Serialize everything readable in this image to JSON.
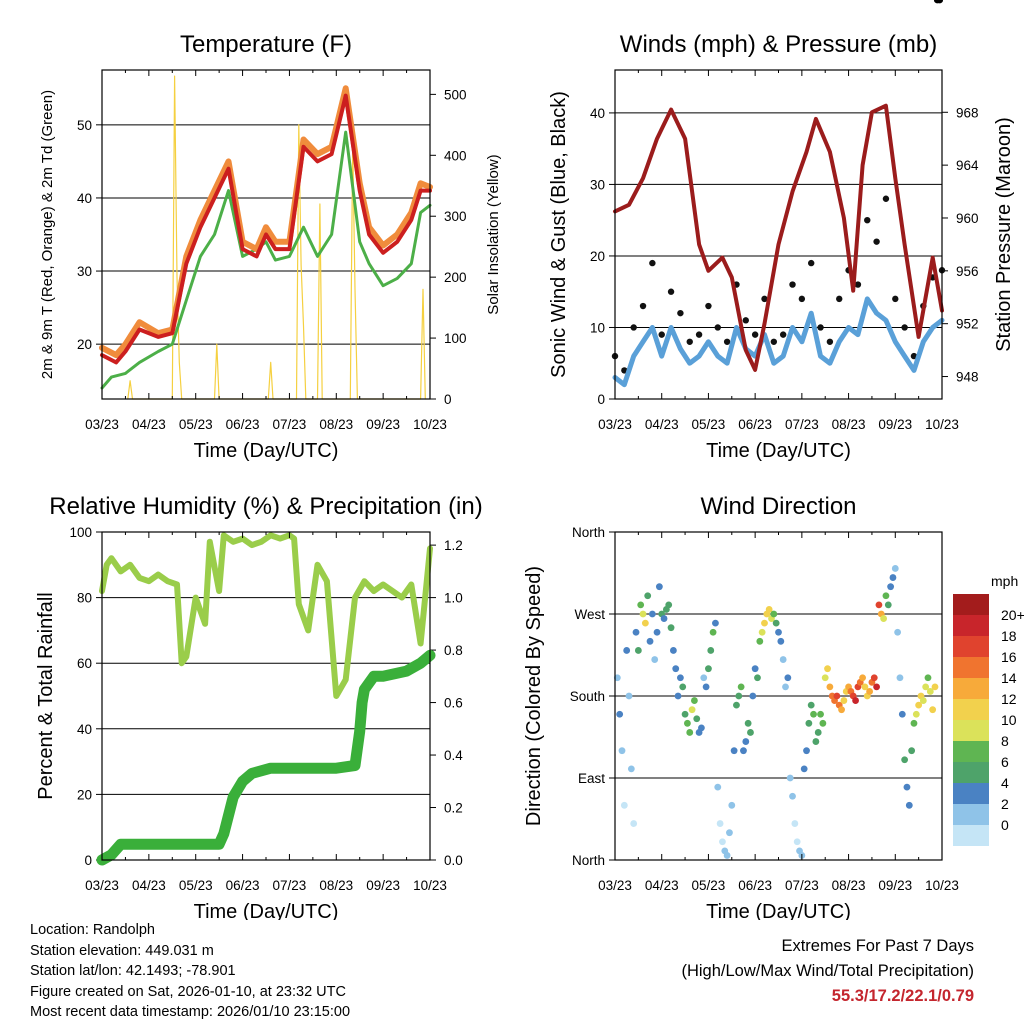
{
  "chart_data": [
    {
      "id": "temperature",
      "type": "line",
      "title": "Temperature (F)",
      "xlabel": "Time (Day/UTC)",
      "ylabel_left": "2m & 9m T (Red, Orange) & 2m Td (Green)",
      "ylabel_right": "Solar Insolation (Yellow)",
      "x_ticks": [
        "03/23",
        "04/23",
        "05/23",
        "06/23",
        "07/23",
        "08/23",
        "09/23",
        "10/23"
      ],
      "y_left_ticks": [
        20,
        30,
        40,
        50
      ],
      "y_left_lim": [
        12.5,
        57.5
      ],
      "y_right_ticks": [
        0,
        100,
        200,
        300,
        400,
        500
      ],
      "y_right_lim": [
        0,
        540
      ],
      "series": [
        {
          "name": "9m T",
          "color": "#f08c3c",
          "x": [
            0,
            0.3,
            0.5,
            0.8,
            1.2,
            1.5,
            1.8,
            2.1,
            2.4,
            2.7,
            3.0,
            3.3,
            3.5,
            3.7,
            4.0,
            4.3,
            4.6,
            4.9,
            5.2,
            5.5,
            5.7,
            6.0,
            6.3,
            6.6,
            6.8,
            7.0
          ],
          "values": [
            19.5,
            18.5,
            20,
            23,
            21.5,
            22,
            32,
            37,
            41,
            45,
            34,
            33,
            36,
            34,
            34,
            48,
            46,
            47,
            55,
            42,
            36,
            33.5,
            35,
            38,
            42,
            41.5
          ]
        },
        {
          "name": "2m T",
          "color": "#cc1f1f",
          "x": [
            0,
            0.3,
            0.5,
            0.8,
            1.2,
            1.5,
            1.8,
            2.1,
            2.4,
            2.7,
            3.0,
            3.3,
            3.5,
            3.7,
            4.0,
            4.3,
            4.6,
            4.9,
            5.2,
            5.5,
            5.7,
            6.0,
            6.3,
            6.6,
            6.8,
            7.0
          ],
          "values": [
            18.5,
            17.5,
            19,
            22,
            21,
            21.5,
            31,
            36,
            40,
            44,
            33,
            32,
            35,
            33,
            33,
            47,
            45,
            46,
            54,
            41,
            35,
            32.5,
            34,
            37,
            41,
            41
          ]
        },
        {
          "name": "2m Td",
          "color": "#4caf48",
          "x": [
            0,
            0.2,
            0.5,
            0.8,
            1.2,
            1.5,
            1.8,
            2.1,
            2.4,
            2.7,
            3.0,
            3.3,
            3.5,
            3.7,
            4.0,
            4.3,
            4.6,
            4.9,
            5.2,
            5.5,
            5.7,
            6.0,
            6.3,
            6.6,
            6.8,
            7.0
          ],
          "values": [
            14,
            15.5,
            16,
            17.5,
            19,
            20,
            26,
            32,
            35,
            41,
            32,
            33,
            34,
            31.5,
            32,
            36,
            32,
            35,
            49,
            34,
            31,
            28,
            29,
            31,
            38,
            39
          ]
        },
        {
          "name": "Solar Insolation",
          "color": "#f5d040",
          "x": [
            0.55,
            0.6,
            0.65,
            1.5,
            1.55,
            1.6,
            1.65,
            1.7,
            2.4,
            2.45,
            2.5,
            3.55,
            3.6,
            3.65,
            4.15,
            4.2,
            4.25,
            4.3,
            4.35,
            4.6,
            4.65,
            4.7,
            5.3,
            5.35,
            5.4,
            5.45,
            6.8,
            6.85,
            6.9
          ],
          "values": [
            0,
            30,
            0,
            0,
            530,
            200,
            60,
            0,
            0,
            90,
            0,
            0,
            60,
            0,
            0,
            450,
            220,
            120,
            0,
            0,
            320,
            0,
            0,
            420,
            180,
            0,
            0,
            180,
            0
          ]
        }
      ]
    },
    {
      "id": "winds",
      "type": "line",
      "title": "Winds (mph) & Pressure (mb)",
      "xlabel": "Time (Day/UTC)",
      "ylabel_left": "Sonic Wind & Gust (Blue, Black)",
      "ylabel_right": "Station Pressure (Maroon)",
      "x_ticks": [
        "03/23",
        "04/23",
        "05/23",
        "06/23",
        "07/23",
        "08/23",
        "09/23",
        "10/23"
      ],
      "y_left_ticks": [
        0,
        10,
        20,
        30,
        40
      ],
      "y_left_lim": [
        0,
        46
      ],
      "y_right_ticks": [
        948,
        952,
        956,
        960,
        964,
        968
      ],
      "y_right_lim": [
        946.3,
        971.2
      ],
      "series": [
        {
          "name": "Sonic Wind",
          "color": "#5aa0d8",
          "x": [
            0,
            0.2,
            0.4,
            0.6,
            0.8,
            1.0,
            1.2,
            1.4,
            1.6,
            1.8,
            2.0,
            2.2,
            2.4,
            2.6,
            2.8,
            3.0,
            3.2,
            3.4,
            3.6,
            3.8,
            4.0,
            4.2,
            4.4,
            4.6,
            4.8,
            5.0,
            5.2,
            5.4,
            5.6,
            5.8,
            6.0,
            6.2,
            6.4,
            6.6,
            6.8,
            7.0
          ],
          "values": [
            3,
            2,
            6,
            8,
            10,
            6,
            10,
            7,
            5,
            6,
            8,
            6,
            5,
            10,
            7,
            6,
            9,
            5,
            6,
            10,
            8,
            12,
            6,
            5,
            8,
            10,
            9,
            14,
            12,
            11,
            8,
            6,
            4,
            8,
            10,
            11
          ]
        },
        {
          "name": "Gust",
          "color": "#111111",
          "x": [
            0,
            0.2,
            0.4,
            0.6,
            0.8,
            1.0,
            1.2,
            1.4,
            1.6,
            1.8,
            2.0,
            2.2,
            2.4,
            2.6,
            2.8,
            3.0,
            3.2,
            3.4,
            3.6,
            3.8,
            4.0,
            4.2,
            4.4,
            4.6,
            4.8,
            5.0,
            5.2,
            5.4,
            5.6,
            5.8,
            6.0,
            6.2,
            6.4,
            6.6,
            6.8,
            7.0
          ],
          "values": [
            6,
            4,
            10,
            13,
            19,
            9,
            15,
            12,
            8,
            9,
            13,
            10,
            8,
            16,
            11,
            9,
            14,
            8,
            9,
            16,
            14,
            19,
            10,
            8,
            14,
            18,
            16,
            25,
            22,
            28,
            14,
            10,
            6,
            13,
            17,
            18
          ]
        },
        {
          "name": "Station Pressure",
          "color": "#9b1c1c",
          "x": [
            0,
            0.3,
            0.6,
            0.9,
            1.2,
            1.5,
            1.8,
            2.0,
            2.3,
            2.5,
            2.8,
            3.0,
            3.2,
            3.5,
            3.8,
            4.1,
            4.3,
            4.6,
            4.9,
            5.1,
            5.3,
            5.5,
            5.8,
            6.0,
            6.2,
            6.5,
            6.8,
            7.0
          ],
          "values": [
            960.5,
            961,
            963,
            966,
            968.2,
            966,
            958,
            956,
            957,
            955.5,
            950,
            948.5,
            952,
            958,
            962,
            965,
            967.5,
            965,
            960,
            954.5,
            964,
            968,
            968.5,
            963,
            958,
            951,
            957,
            953
          ]
        }
      ]
    },
    {
      "id": "rh_precip",
      "type": "line",
      "title": "Relative Humidity (%) & Precipitation (in)",
      "xlabel": "Time (Day/UTC)",
      "ylabel_left": "Percent & Total Rainfall",
      "x_ticks": [
        "03/23",
        "04/23",
        "05/23",
        "06/23",
        "07/23",
        "08/23",
        "09/23",
        "10/23"
      ],
      "y_left_ticks": [
        0,
        20,
        40,
        60,
        80,
        100
      ],
      "y_left_lim": [
        0,
        100
      ],
      "y_right_ticks": [
        "0.0",
        "0.2",
        "0.4",
        "0.6",
        "0.8",
        "1.0",
        "1.2"
      ],
      "y_right_lim": [
        0,
        1.25
      ],
      "series": [
        {
          "name": "Relative Humidity",
          "color": "#9acd4a",
          "x": [
            0,
            0.1,
            0.2,
            0.4,
            0.6,
            0.8,
            1.0,
            1.2,
            1.4,
            1.6,
            1.7,
            1.8,
            2.0,
            2.2,
            2.3,
            2.5,
            2.6,
            2.8,
            3.0,
            3.2,
            3.4,
            3.6,
            3.8,
            4.0,
            4.1,
            4.2,
            4.4,
            4.6,
            4.8,
            5.0,
            5.2,
            5.4,
            5.6,
            5.8,
            6.0,
            6.2,
            6.4,
            6.6,
            6.8,
            7.0
          ],
          "values": [
            82,
            90,
            92,
            88,
            90,
            86,
            85,
            87,
            85,
            84,
            60,
            62,
            80,
            72,
            97,
            82,
            99,
            97,
            98,
            96,
            97,
            99,
            98,
            99,
            98,
            78,
            70,
            90,
            85,
            50,
            55,
            80,
            85,
            82,
            84,
            82,
            80,
            84,
            66,
            95
          ]
        },
        {
          "name": "Total Precipitation",
          "color": "#3aaf3a",
          "x": [
            0,
            0.2,
            0.4,
            0.6,
            1.0,
            1.5,
            2.0,
            2.5,
            2.6,
            2.8,
            3.0,
            3.2,
            3.6,
            4.0,
            4.5,
            5.0,
            5.4,
            5.5,
            5.55,
            5.6,
            5.8,
            6.0,
            6.5,
            6.8,
            7.0
          ],
          "values": [
            0,
            0.02,
            0.06,
            0.06,
            0.06,
            0.06,
            0.06,
            0.06,
            0.1,
            0.24,
            0.3,
            0.33,
            0.35,
            0.35,
            0.35,
            0.35,
            0.36,
            0.49,
            0.6,
            0.65,
            0.7,
            0.7,
            0.72,
            0.75,
            0.78
          ]
        }
      ]
    },
    {
      "id": "wind_direction",
      "type": "scatter",
      "title": "Wind Direction",
      "xlabel": "Time (Day/UTC)",
      "ylabel_left": "Direction (Colored By Speed)",
      "x_ticks": [
        "03/23",
        "04/23",
        "05/23",
        "06/23",
        "07/23",
        "08/23",
        "09/23",
        "10/23"
      ],
      "y_ticks": [
        "North",
        "East",
        "South",
        "West",
        "North"
      ],
      "y_lim": [
        0,
        360
      ],
      "legend_title": "mph",
      "legend_labels": [
        "20+",
        "18",
        "16",
        "14",
        "12",
        "10",
        "8",
        "6",
        "4",
        "2",
        "0"
      ],
      "legend_colors": [
        "#a31c1c",
        "#c8252b",
        "#e0432e",
        "#f0742f",
        "#f7aa3a",
        "#f2d14d",
        "#dbe25a",
        "#5fb552",
        "#4ea36a",
        "#4a82c3",
        "#8fc3e8",
        "#c5e5f6"
      ],
      "points_x": [
        0.05,
        0.1,
        0.15,
        0.2,
        0.25,
        0.3,
        0.35,
        0.4,
        0.45,
        0.5,
        0.55,
        0.6,
        0.65,
        0.7,
        0.75,
        0.8,
        0.85,
        0.9,
        0.95,
        1.0,
        1.05,
        1.1,
        1.15,
        1.2,
        1.25,
        1.3,
        1.35,
        1.4,
        1.45,
        1.5,
        1.55,
        1.6,
        1.65,
        1.7,
        1.75,
        1.8,
        1.85,
        1.9,
        1.95,
        2.0,
        2.05,
        2.1,
        2.15,
        2.2,
        2.25,
        2.3,
        2.35,
        2.4,
        2.45,
        2.5,
        2.55,
        2.6,
        2.65,
        2.7,
        2.75,
        2.8,
        2.85,
        2.9,
        2.95,
        3.0,
        3.05,
        3.1,
        3.15,
        3.2,
        3.25,
        3.3,
        3.35,
        3.4,
        3.45,
        3.5,
        3.55,
        3.6,
        3.65,
        3.7,
        3.75,
        3.8,
        3.85,
        3.9,
        3.95,
        4.0,
        4.05,
        4.1,
        4.15,
        4.2,
        4.25,
        4.3,
        4.35,
        4.4,
        4.45,
        4.5,
        4.55,
        4.6,
        4.65,
        4.7,
        4.75,
        4.8,
        4.85,
        4.9,
        4.95,
        5.0,
        5.05,
        5.1,
        5.15,
        5.2,
        5.25,
        5.3,
        5.35,
        5.4,
        5.45,
        5.5,
        5.55,
        5.6,
        5.65,
        5.7,
        5.75,
        5.8,
        5.85,
        5.9,
        5.95,
        6.0,
        6.05,
        6.1,
        6.15,
        6.2,
        6.25,
        6.3,
        6.35,
        6.4,
        6.45,
        6.5,
        6.55,
        6.6,
        6.65,
        6.7,
        6.75,
        6.8,
        6.85,
        6.9,
        6.95
      ],
      "points_y": [
        200,
        160,
        120,
        60,
        230,
        180,
        100,
        40,
        250,
        230,
        280,
        270,
        260,
        290,
        240,
        270,
        220,
        250,
        300,
        270,
        265,
        275,
        280,
        255,
        230,
        210,
        180,
        200,
        190,
        160,
        150,
        140,
        165,
        175,
        155,
        140,
        145,
        200,
        190,
        210,
        230,
        250,
        260,
        80,
        40,
        20,
        10,
        5,
        30,
        60,
        120,
        170,
        180,
        190,
        120,
        130,
        150,
        140,
        180,
        210,
        200,
        240,
        250,
        260,
        270,
        275,
        265,
        270,
        260,
        250,
        240,
        220,
        190,
        200,
        90,
        70,
        40,
        20,
        10,
        5,
        100,
        120,
        150,
        170,
        160,
        130,
        140,
        160,
        150,
        200,
        210,
        190,
        180,
        175,
        180,
        170,
        165,
        175,
        185,
        190,
        185,
        180,
        175,
        190,
        195,
        200,
        190,
        180,
        185,
        195,
        200,
        190,
        280,
        270,
        265,
        290,
        280,
        300,
        310,
        320,
        250,
        200,
        160,
        110,
        80,
        60,
        120,
        150,
        160,
        170,
        180,
        175,
        190,
        200,
        185,
        165,
        190
      ],
      "points_speed": [
        3,
        4,
        2,
        1,
        4,
        3,
        2,
        1,
        5,
        6,
        9,
        10,
        12,
        6,
        4,
        5,
        3,
        4,
        5,
        6,
        5,
        6,
        7,
        6,
        5,
        4,
        4,
        5,
        6,
        7,
        8,
        9,
        10,
        8,
        6,
        5,
        4,
        3,
        5,
        6,
        7,
        8,
        4,
        2,
        1,
        1,
        2,
        2,
        3,
        3,
        4,
        6,
        7,
        8,
        5,
        5,
        6,
        7,
        4,
        5,
        6,
        8,
        10,
        12,
        13,
        12,
        10,
        8,
        6,
        5,
        4,
        3,
        3,
        4,
        2,
        2,
        1,
        1,
        2,
        2,
        4,
        5,
        6,
        7,
        8,
        6,
        7,
        8,
        9,
        10,
        12,
        14,
        16,
        17,
        18,
        16,
        14,
        12,
        13,
        15,
        17,
        19,
        20,
        18,
        16,
        14,
        12,
        13,
        15,
        17,
        19,
        20,
        18,
        14,
        10,
        8,
        6,
        5,
        4,
        3,
        2,
        3,
        5,
        6,
        5,
        4,
        6,
        8,
        10,
        12,
        13,
        11,
        10,
        9,
        11,
        12,
        13
      ]
    }
  ],
  "info": {
    "location": "Location: Randolph",
    "elevation": "Station elevation: 449.031 m",
    "latlon": "Station lat/lon: 42.1493; -78.901",
    "created": "Figure created on Sat, 2026-01-10, at 23:32 UTC",
    "recent": "Most recent data timestamp: 2026/01/10 23:15:00"
  },
  "extremes": {
    "title": "Extremes For Past 7 Days",
    "subtitle": "(High/Low/Max Wind/Total Precipitation)",
    "values": "55.3/17.2/22.1/0.79"
  }
}
